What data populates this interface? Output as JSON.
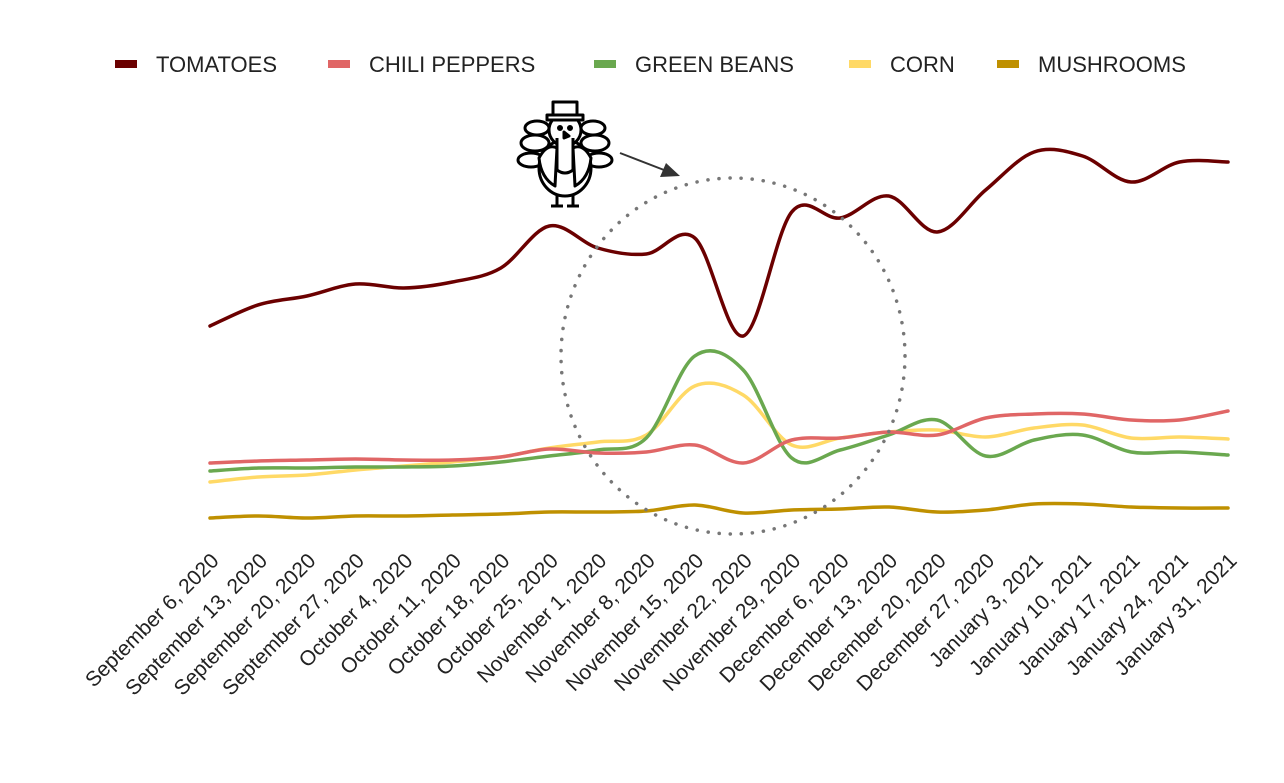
{
  "chart_data": {
    "type": "line",
    "title": "",
    "xlabel": "",
    "ylabel": "",
    "y_axis_shown": false,
    "grid": false,
    "legend_position": "top",
    "ylim": [
      0,
      100
    ],
    "categories": [
      "September 6, 2020",
      "September 13, 2020",
      "September 20, 2020",
      "September 27, 2020",
      "October 4, 2020",
      "October 11, 2020",
      "October 18, 2020",
      "October 25, 2020",
      "November 1, 2020",
      "November 8, 2020",
      "November 15, 2020",
      "November 22, 2020",
      "November 29, 2020",
      "December 6, 2020",
      "December 13, 2020",
      "December 20, 2020",
      "December 27, 2020",
      "January 3, 2021",
      "January 10, 2021",
      "January 17, 2021",
      "January 24, 2021",
      "January 31, 2021"
    ],
    "series": [
      {
        "name": "TOMATOES",
        "color": "#6b0000",
        "values": [
          53.5,
          58.8,
          61,
          64,
          63,
          64.5,
          68,
          78.5,
          73,
          71.5,
          75.5,
          51,
          82,
          80.5,
          86,
          77,
          87.5,
          97,
          96,
          89.5,
          94.5,
          94.5
        ]
      },
      {
        "name": "CHILI PEPPERS",
        "color": "#e06666",
        "values": [
          19.25,
          19.75,
          20,
          20.25,
          20,
          20,
          20.75,
          22.75,
          21.75,
          22,
          23.75,
          19.25,
          25,
          25.5,
          27,
          26.25,
          30.5,
          31.5,
          31.5,
          30,
          30,
          32.25
        ]
      },
      {
        "name": "GREEN BEANS",
        "color": "#6aa84f",
        "values": [
          17.25,
          18,
          18,
          18.25,
          18.25,
          18.5,
          19.5,
          21,
          22.5,
          25.5,
          46,
          42.5,
          20.5,
          22.5,
          26.25,
          30,
          21,
          25,
          26.25,
          22,
          22,
          21.25
        ]
      },
      {
        "name": "CORN",
        "color": "#ffd966",
        "values": [
          14.5,
          15.75,
          16.25,
          17.5,
          18.5,
          19.5,
          20.75,
          23,
          24.5,
          26.25,
          38.5,
          36.25,
          23.75,
          25.5,
          27,
          27.5,
          25.75,
          28,
          28.75,
          25.5,
          25.75,
          25.25
        ]
      },
      {
        "name": "MUSHROOMS",
        "color": "#bf9000",
        "values": [
          5.5,
          6,
          5.5,
          6,
          6,
          6.25,
          6.5,
          7,
          7,
          7.25,
          8.75,
          6.75,
          7.5,
          7.75,
          8.25,
          7,
          7.5,
          9,
          9,
          8.25,
          8,
          8
        ]
      }
    ],
    "annotations": [
      {
        "type": "dotted-circle",
        "around": "November 22, 2020",
        "color": "#777777"
      },
      {
        "type": "icon",
        "icon": "turkey-icon",
        "arrow_to": "dotted-circle"
      }
    ]
  }
}
